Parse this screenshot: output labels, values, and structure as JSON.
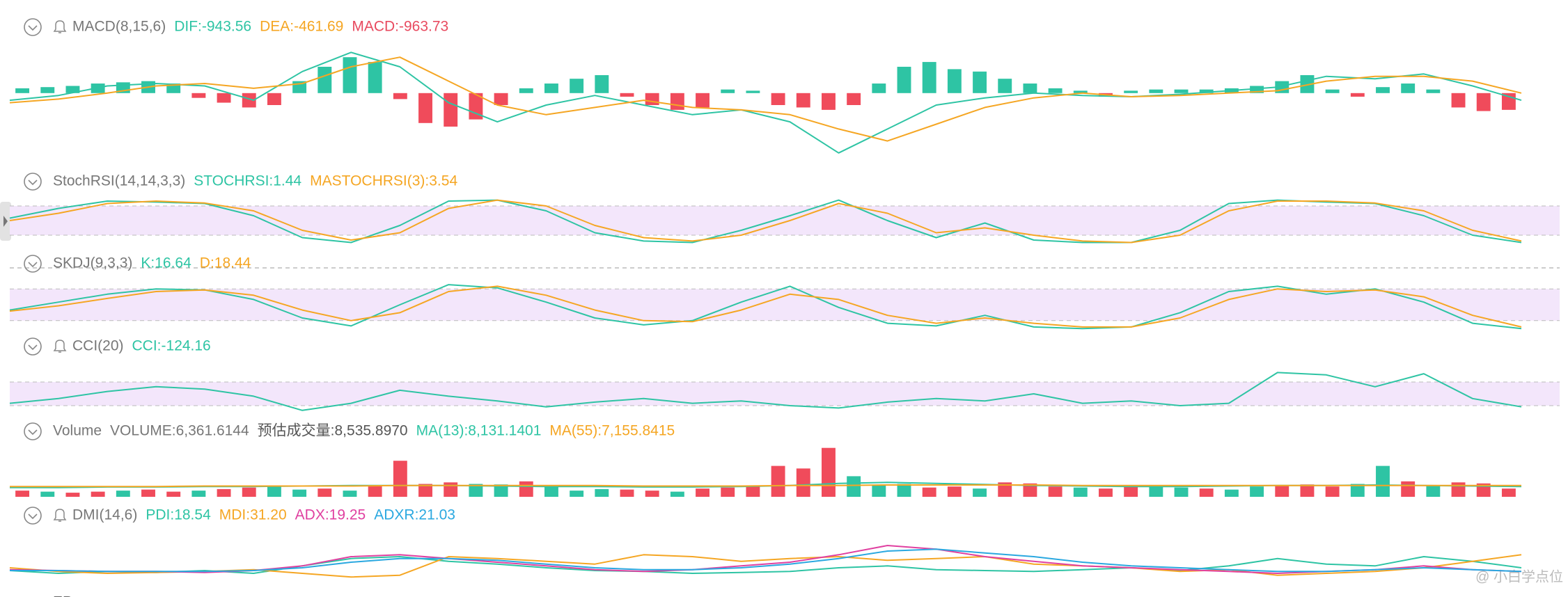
{
  "panels": [
    {
      "title": "MACD(8,15,6)",
      "bell": true,
      "type": "macd",
      "items": [
        {
          "text": "DIF:-943.56",
          "color": "#2ec4a4"
        },
        {
          "text": "DEA:-461.69",
          "color": "#f5a623"
        },
        {
          "text": "MACD:-963.73",
          "color": "#e84a5f"
        }
      ],
      "ylim": [
        -60,
        40
      ],
      "up_color": "#2ec4a4",
      "down_color": "#f04b5b",
      "bars": [
        4,
        5,
        6,
        8,
        9,
        10,
        8,
        -4,
        -8,
        -12,
        -10,
        10,
        22,
        30,
        26,
        -5,
        -25,
        -28,
        -22,
        -10,
        4,
        8,
        12,
        15,
        -3,
        -10,
        -14,
        -12,
        3,
        2,
        -10,
        -12,
        -14,
        -10,
        8,
        22,
        26,
        20,
        18,
        12,
        8,
        4,
        2,
        -3,
        2,
        3,
        3,
        3,
        4,
        6,
        10,
        15,
        3,
        -3,
        5,
        8,
        3,
        -12,
        -15,
        -14
      ],
      "lines": [
        {
          "color": "#2ec4a4",
          "values": [
            -6,
            -2,
            6,
            8,
            6,
            -6,
            18,
            34,
            22,
            -8,
            -24,
            -10,
            -2,
            -10,
            -18,
            -14,
            -24,
            -50,
            -30,
            -10,
            -4,
            0,
            -2,
            -3,
            -1,
            2,
            5,
            14,
            12,
            16,
            6,
            -6
          ]
        },
        {
          "color": "#f5a623",
          "values": [
            -8,
            -5,
            0,
            6,
            8,
            4,
            8,
            22,
            30,
            10,
            -10,
            -18,
            -12,
            -6,
            -12,
            -14,
            -18,
            -30,
            -40,
            -26,
            -12,
            -4,
            0,
            -3,
            -2,
            0,
            2,
            10,
            14,
            14,
            10,
            0
          ]
        }
      ]
    },
    {
      "title": "StochRSI(14,14,3,3)",
      "bell": false,
      "type": "osc",
      "items": [
        {
          "text": "STOCHRSI:1.44",
          "color": "#2ec4a4"
        },
        {
          "text": "MASTOCHRSI(3):3.54",
          "color": "#f5a623"
        }
      ],
      "ylim": [
        0,
        100
      ],
      "band": [
        20,
        80
      ],
      "lines": [
        {
          "color": "#2ec4a4",
          "values": [
            55,
            75,
            90,
            88,
            85,
            60,
            15,
            5,
            40,
            90,
            92,
            70,
            25,
            8,
            5,
            30,
            60,
            92,
            50,
            15,
            45,
            10,
            5,
            5,
            30,
            85,
            92,
            88,
            85,
            60,
            20,
            5
          ]
        },
        {
          "color": "#f5a623",
          "values": [
            50,
            65,
            85,
            90,
            86,
            70,
            30,
            10,
            25,
            75,
            92,
            80,
            40,
            15,
            8,
            20,
            50,
            85,
            65,
            25,
            35,
            20,
            8,
            5,
            20,
            70,
            90,
            90,
            86,
            70,
            30,
            8
          ]
        }
      ]
    },
    {
      "title": "SKDJ(9,3,3)",
      "bell": false,
      "type": "osc",
      "items": [
        {
          "text": "K:16.64",
          "color": "#2ec4a4"
        },
        {
          "text": "D:18.44",
          "color": "#f5a623"
        }
      ],
      "ylim": [
        0,
        100
      ],
      "band": [
        20,
        80
      ],
      "lines": [
        {
          "color": "#2ec4a4",
          "values": [
            40,
            55,
            70,
            80,
            78,
            60,
            25,
            10,
            50,
            88,
            82,
            55,
            25,
            12,
            20,
            55,
            85,
            45,
            15,
            10,
            30,
            8,
            5,
            8,
            35,
            75,
            85,
            70,
            80,
            55,
            15,
            5
          ]
        },
        {
          "color": "#f5a623",
          "values": [
            38,
            48,
            62,
            75,
            78,
            68,
            40,
            20,
            35,
            75,
            85,
            68,
            40,
            20,
            18,
            40,
            70,
            60,
            30,
            15,
            25,
            15,
            8,
            8,
            25,
            60,
            80,
            75,
            78,
            65,
            30,
            8
          ]
        }
      ]
    },
    {
      "title": "CCI(20)",
      "bell": true,
      "type": "osc",
      "items": [
        {
          "text": "CCI:-124.16",
          "color": "#2ec4a4"
        }
      ],
      "ylim": [
        -200,
        300
      ],
      "band": [
        -100,
        100
      ],
      "lines": [
        {
          "color": "#2ec4a4",
          "values": [
            -80,
            -40,
            20,
            60,
            40,
            -20,
            -140,
            -80,
            30,
            -20,
            -60,
            -110,
            -70,
            -40,
            -80,
            -60,
            -100,
            -120,
            -70,
            -40,
            -60,
            0,
            -80,
            -60,
            -100,
            -80,
            180,
            160,
            60,
            170,
            -40,
            -110
          ]
        }
      ]
    },
    {
      "title": "Volume",
      "bell": false,
      "type": "volume",
      "items": [
        {
          "text": "VOLUME:6,361.6144",
          "color": "#777777"
        },
        {
          "text": "预估成交量:8,535.8970",
          "color": "#555555"
        },
        {
          "text": "MA(13):8,131.1401",
          "color": "#2ec4a4"
        },
        {
          "text": "MA(55):7,155.8415",
          "color": "#f5a623"
        }
      ],
      "ylim": [
        0,
        100
      ],
      "bars": [
        12,
        10,
        8,
        10,
        12,
        14,
        10,
        12,
        15,
        18,
        20,
        14,
        16,
        12,
        22,
        70,
        25,
        28,
        25,
        24,
        30,
        20,
        12,
        15,
        14,
        12,
        10,
        16,
        18,
        20,
        60,
        55,
        95,
        40,
        22,
        25,
        18,
        20,
        16,
        28,
        26,
        20,
        18,
        16,
        22,
        20,
        18,
        16,
        14,
        20,
        22,
        24,
        20,
        25,
        60,
        30,
        22,
        28,
        26,
        16
      ],
      "bar_colors": [
        "#f04b5b",
        "#2ec4a4",
        "#f04b5b",
        "#f04b5b",
        "#2ec4a4",
        "#f04b5b",
        "#f04b5b",
        "#2ec4a4",
        "#f04b5b",
        "#f04b5b",
        "#2ec4a4",
        "#2ec4a4",
        "#f04b5b",
        "#2ec4a4",
        "#f04b5b",
        "#f04b5b",
        "#f04b5b",
        "#f04b5b",
        "#2ec4a4",
        "#2ec4a4",
        "#f04b5b",
        "#2ec4a4",
        "#2ec4a4",
        "#2ec4a4",
        "#f04b5b",
        "#f04b5b",
        "#2ec4a4",
        "#f04b5b",
        "#f04b5b",
        "#f04b5b",
        "#f04b5b",
        "#f04b5b",
        "#f04b5b",
        "#2ec4a4",
        "#2ec4a4",
        "#2ec4a4",
        "#f04b5b",
        "#f04b5b",
        "#2ec4a4",
        "#f04b5b",
        "#f04b5b",
        "#f04b5b",
        "#2ec4a4",
        "#f04b5b",
        "#f04b5b",
        "#2ec4a4",
        "#2ec4a4",
        "#f04b5b",
        "#2ec4a4",
        "#2ec4a4",
        "#f04b5b",
        "#f04b5b",
        "#f04b5b",
        "#2ec4a4",
        "#2ec4a4",
        "#f04b5b",
        "#2ec4a4",
        "#f04b5b",
        "#f04b5b",
        "#f04b5b"
      ],
      "lines": [
        {
          "color": "#2ec4a4",
          "values": [
            18,
            18,
            19,
            19,
            20,
            20,
            21,
            22,
            22,
            22,
            21,
            20,
            20,
            19,
            19,
            20,
            22,
            26,
            28,
            26,
            24,
            22,
            21,
            20,
            20,
            21,
            22,
            22,
            23,
            22,
            21,
            20
          ]
        },
        {
          "color": "#f5a623",
          "values": [
            20,
            20,
            20,
            20,
            21,
            21,
            21,
            21,
            22,
            22,
            22,
            22,
            22,
            21,
            21,
            21,
            22,
            22,
            23,
            23,
            23,
            23,
            22,
            22,
            22,
            22,
            22,
            22,
            22,
            22,
            22,
            22
          ]
        }
      ]
    },
    {
      "title": "DMI(14,6)",
      "bell": true,
      "type": "osc",
      "items": [
        {
          "text": "PDI:18.54",
          "color": "#2ec4a4"
        },
        {
          "text": "MDI:31.20",
          "color": "#f5a623"
        },
        {
          "text": "ADX:19.25",
          "color": "#e040a0"
        },
        {
          "text": "ADXR:21.03",
          "color": "#2aa8e0"
        }
      ],
      "ylim": [
        0,
        60
      ],
      "lines": [
        {
          "color": "#2ec4a4",
          "values": [
            15,
            12,
            14,
            13,
            15,
            12,
            20,
            28,
            30,
            25,
            22,
            18,
            15,
            14,
            12,
            13,
            14,
            18,
            20,
            16,
            15,
            14,
            16,
            18,
            15,
            20,
            28,
            22,
            20,
            30,
            25,
            18
          ]
        },
        {
          "color": "#f5a623",
          "values": [
            18,
            14,
            12,
            13,
            14,
            16,
            12,
            8,
            10,
            30,
            28,
            25,
            22,
            32,
            30,
            25,
            28,
            30,
            26,
            28,
            30,
            22,
            20,
            18,
            14,
            16,
            10,
            12,
            14,
            18,
            25,
            32
          ]
        },
        {
          "color": "#e040a0",
          "values": [
            16,
            15,
            14,
            14,
            13,
            15,
            20,
            30,
            32,
            28,
            24,
            20,
            16,
            14,
            16,
            20,
            24,
            32,
            42,
            38,
            30,
            25,
            20,
            18,
            16,
            14,
            12,
            14,
            16,
            20,
            16,
            14
          ]
        },
        {
          "color": "#2aa8e0",
          "values": [
            15,
            15,
            14,
            14,
            14,
            15,
            18,
            24,
            28,
            28,
            26,
            22,
            18,
            16,
            16,
            18,
            22,
            28,
            36,
            38,
            34,
            30,
            24,
            20,
            18,
            16,
            14,
            14,
            16,
            18,
            16,
            14
          ]
        }
      ]
    }
  ],
  "next_panel": "EP",
  "watermark": "@ 小白学点位"
}
